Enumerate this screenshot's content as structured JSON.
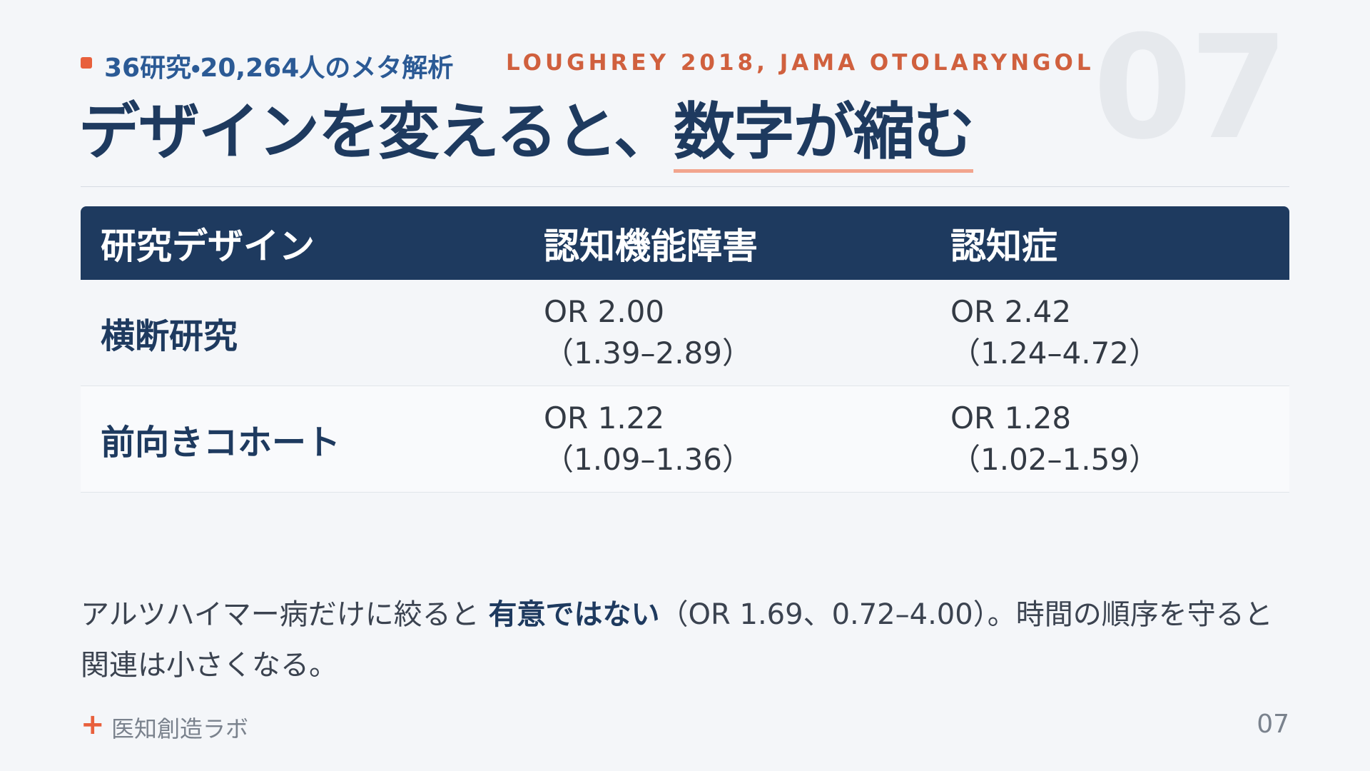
{
  "header": {
    "kicker": "36研究・20,264人のメタ解析",
    "citation": "LOUGHREY 2018, JAMA OTOLARYNGOL",
    "watermark": "07",
    "title_main": "デザインを変えると、",
    "title_emphasis": "数字が縮む"
  },
  "table": {
    "columns": [
      "研究デザイン",
      "認知機能障害",
      "認知症"
    ],
    "rows": [
      {
        "label": "横断研究",
        "cells": [
          [
            "OR 2.00",
            "（1.39–2.89）"
          ],
          [
            "OR 2.42",
            "（1.24–4.72）"
          ]
        ]
      },
      {
        "label": "前向きコホート",
        "cells": [
          [
            "OR 1.22",
            "（1.09–1.36）"
          ],
          [
            "OR 1.28",
            "（1.02–1.59）"
          ]
        ]
      }
    ]
  },
  "note": {
    "lead": "アルツハイマー病だけに絞ると ",
    "emphasis": "有意ではない",
    "rest": "（OR 1.69、0.72–4.00）。時間の順序を守ると関連は小さくなる。"
  },
  "footer": {
    "brand": "医知創造ラボ",
    "page": "07"
  }
}
